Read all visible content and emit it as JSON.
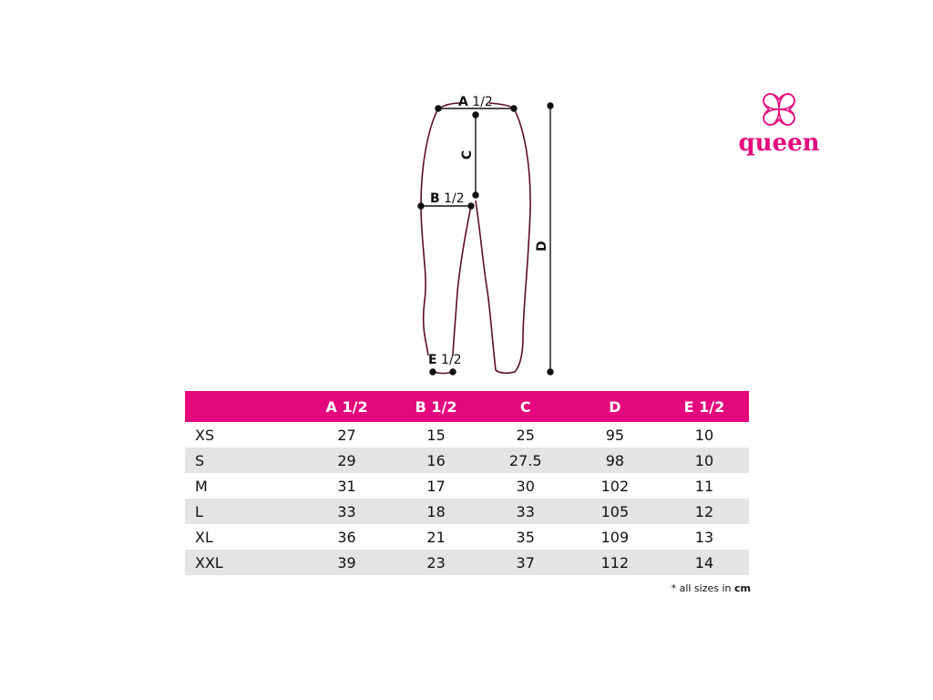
{
  "diagram": {
    "labels": {
      "a": {
        "letter": "A",
        "fraction": "1/2"
      },
      "b": {
        "letter": "B",
        "fraction": "1/2"
      },
      "c": {
        "letter": "C"
      },
      "d": {
        "letter": "D"
      },
      "e": {
        "letter": "E",
        "fraction": "1/2"
      }
    },
    "outline_color": "#5a1020"
  },
  "logo": {
    "text": "queen",
    "color": "#e4077d"
  },
  "table": {
    "header_color": "#e4077d",
    "columns": [
      "",
      "A 1/2",
      "B 1/2",
      "C",
      "D",
      "E 1/2"
    ],
    "rows": [
      [
        "XS",
        "27",
        "15",
        "25",
        "95",
        "10"
      ],
      [
        "S",
        "29",
        "16",
        "27.5",
        "98",
        "10"
      ],
      [
        "M",
        "31",
        "17",
        "30",
        "102",
        "11"
      ],
      [
        "L",
        "33",
        "18",
        "33",
        "105",
        "12"
      ],
      [
        "XL",
        "36",
        "21",
        "35",
        "109",
        "13"
      ],
      [
        "XXL",
        "39",
        "23",
        "37",
        "112",
        "14"
      ]
    ]
  },
  "note": {
    "prefix": "* all sizes in",
    "unit": "cm"
  }
}
